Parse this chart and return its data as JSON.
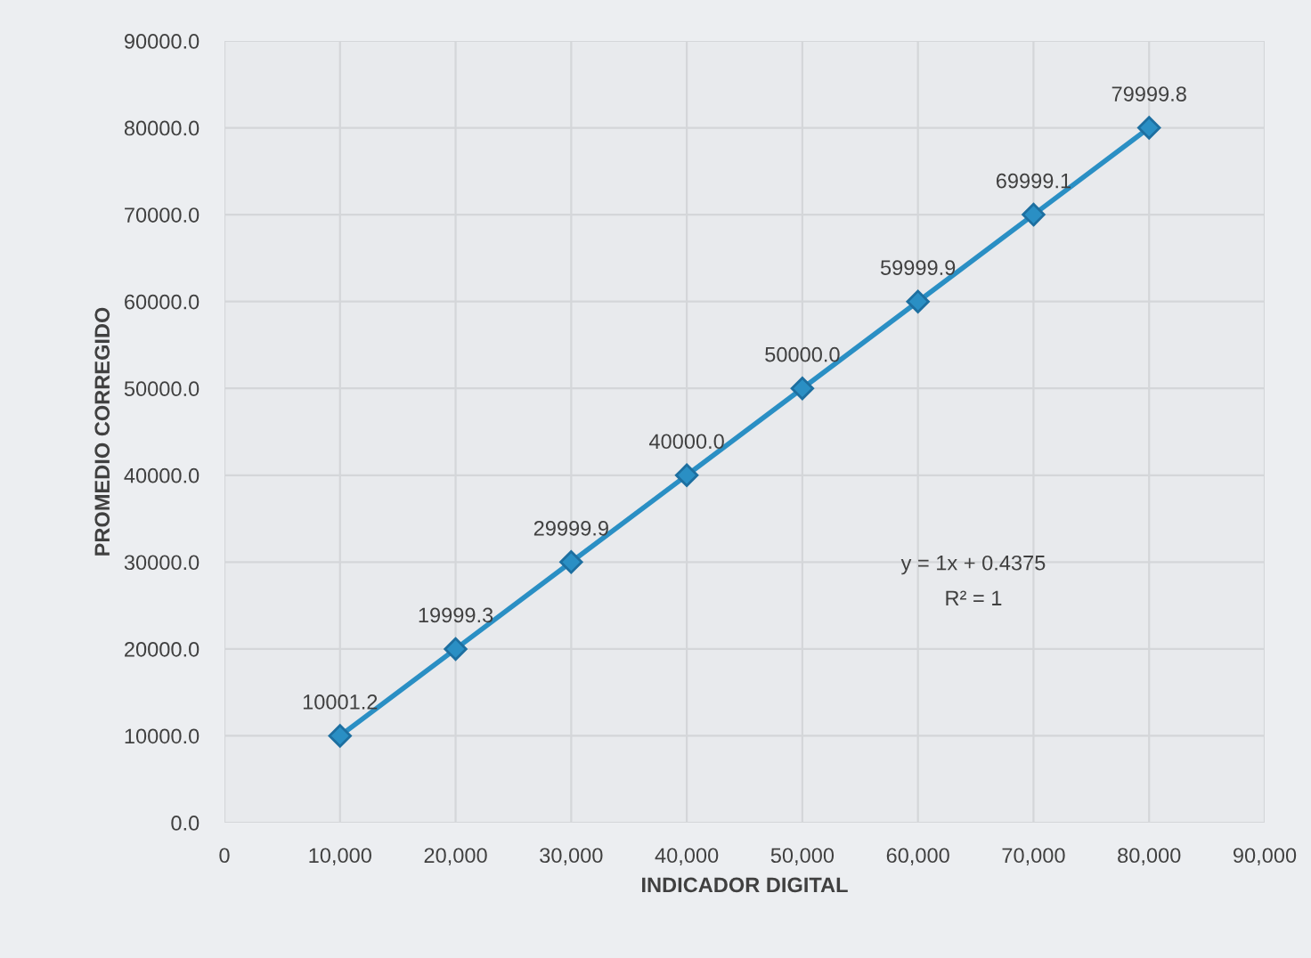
{
  "chart_data": {
    "type": "line",
    "xlabel": "INDICADOR DIGITAL",
    "ylabel": "PROMEDIO CORREGIDO",
    "x": [
      10000,
      20000,
      30000,
      40000,
      50000,
      60000,
      70000,
      80000
    ],
    "series": [
      {
        "color": "#2a8fc4",
        "values": [
          10001.2,
          19999.3,
          29999.9,
          40000.0,
          50000.0,
          59999.9,
          69999.1,
          79999.8
        ],
        "value_labels": [
          "10001.2",
          "19999.3",
          "29999.9",
          "40000.0",
          "50000.0",
          "59999.9",
          "69999.1",
          "79999.8"
        ]
      }
    ],
    "marker": "diamond",
    "line_style": "solid",
    "grid": true,
    "xlim": [
      0,
      90000
    ],
    "ylim": [
      0,
      90000
    ],
    "xticks": [
      {
        "value": 0,
        "label": "0"
      },
      {
        "value": 10000,
        "label": "10,000"
      },
      {
        "value": 20000,
        "label": "20,000"
      },
      {
        "value": 30000,
        "label": "30,000"
      },
      {
        "value": 40000,
        "label": "40,000"
      },
      {
        "value": 50000,
        "label": "50,000"
      },
      {
        "value": 60000,
        "label": "60,000"
      },
      {
        "value": 70000,
        "label": "70,000"
      },
      {
        "value": 80000,
        "label": "80,000"
      },
      {
        "value": 90000,
        "label": "90,000"
      }
    ],
    "yticks": [
      {
        "value": 0,
        "label": "0.0"
      },
      {
        "value": 10000,
        "label": "10000.0"
      },
      {
        "value": 20000,
        "label": "20000.0"
      },
      {
        "value": 30000,
        "label": "30000.0"
      },
      {
        "value": 40000,
        "label": "40000.0"
      },
      {
        "value": 50000,
        "label": "50000.0"
      },
      {
        "value": 60000,
        "label": "60000.0"
      },
      {
        "value": 70000,
        "label": "70000.0"
      },
      {
        "value": 80000,
        "label": "80000.0"
      },
      {
        "value": 90000,
        "label": "90000.0"
      }
    ],
    "annotations": [
      "y = 1x + 0.4375",
      "R² = 1"
    ]
  }
}
